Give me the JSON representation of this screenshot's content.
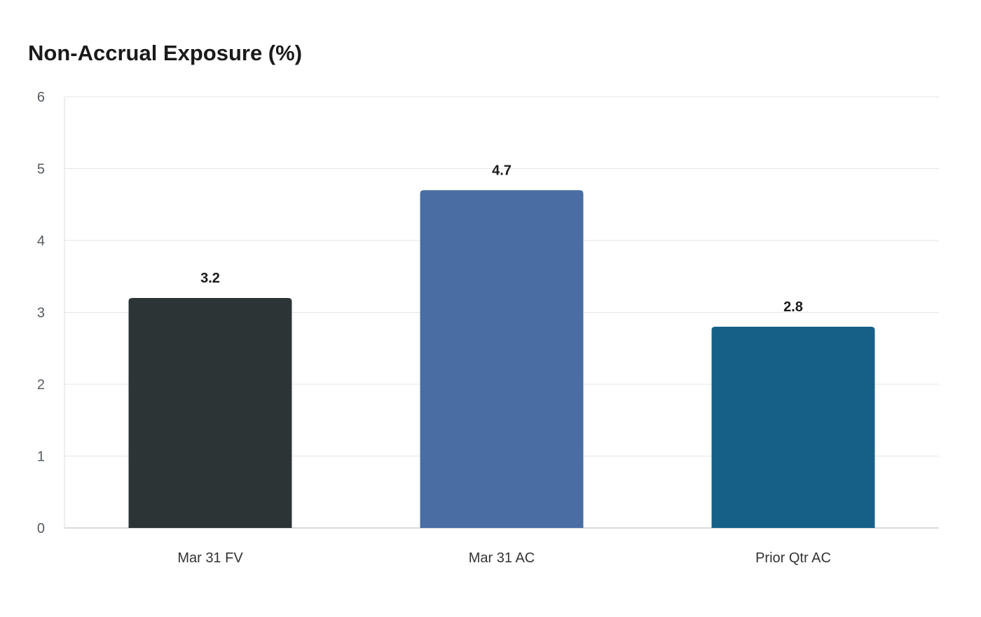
{
  "chart_data": {
    "type": "bar",
    "title": "Non-Accrual Exposure (%)",
    "xlabel": "",
    "ylabel": "",
    "categories": [
      "Mar 31 FV",
      "Mar 31 AC",
      "Prior Qtr AC"
    ],
    "values": [
      3.2,
      4.7,
      2.8
    ],
    "value_labels": [
      "3.2",
      "4.7",
      "2.8"
    ],
    "bar_colors": [
      "#2d3436",
      "#4a6ea3",
      "#166088"
    ],
    "ylim": [
      0,
      6
    ],
    "yticks": [
      0,
      1,
      2,
      3,
      4,
      5,
      6
    ],
    "grid": true,
    "legend": "none"
  }
}
